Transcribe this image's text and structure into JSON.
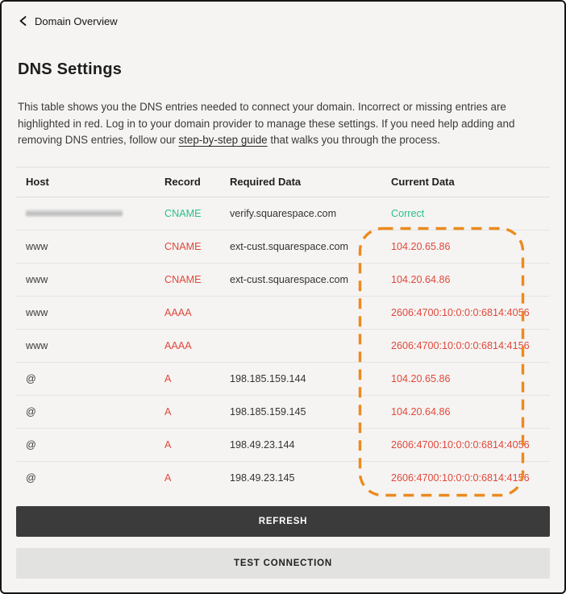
{
  "header": {
    "back_label": "Domain Overview"
  },
  "page": {
    "title": "DNS Settings",
    "description_part1": "This table shows you the DNS entries needed to connect your domain. Incorrect or missing entries are highlighted in red. Log in to your domain provider to manage these settings. If you need help adding and removing DNS entries, follow our ",
    "description_link": "step-by-step guide",
    "description_part2": " that walks you through the process."
  },
  "table": {
    "columns": [
      "Host",
      "Record",
      "Required Data",
      "Current Data"
    ],
    "rows": [
      {
        "host": "",
        "host_redacted": true,
        "record": "CNAME",
        "record_status": "correct",
        "required_data": "verify.squarespace.com",
        "current_data": "Correct",
        "current_status": "correct"
      },
      {
        "host": "www",
        "host_redacted": false,
        "record": "CNAME",
        "record_status": "incorrect",
        "required_data": "ext-cust.squarespace.com",
        "current_data": "104.20.65.86",
        "current_status": "incorrect"
      },
      {
        "host": "www",
        "host_redacted": false,
        "record": "CNAME",
        "record_status": "incorrect",
        "required_data": "ext-cust.squarespace.com",
        "current_data": "104.20.64.86",
        "current_status": "incorrect"
      },
      {
        "host": "www",
        "host_redacted": false,
        "record": "AAAA",
        "record_status": "incorrect",
        "required_data": "",
        "current_data": "2606:4700:10:0:0:0:6814:4056",
        "current_status": "incorrect"
      },
      {
        "host": "www",
        "host_redacted": false,
        "record": "AAAA",
        "record_status": "incorrect",
        "required_data": "",
        "current_data": "2606:4700:10:0:0:0:6814:4156",
        "current_status": "incorrect"
      },
      {
        "host": "@",
        "host_redacted": false,
        "record": "A",
        "record_status": "incorrect",
        "required_data": "198.185.159.144",
        "current_data": "104.20.65.86",
        "current_status": "incorrect"
      },
      {
        "host": "@",
        "host_redacted": false,
        "record": "A",
        "record_status": "incorrect",
        "required_data": "198.185.159.145",
        "current_data": "104.20.64.86",
        "current_status": "incorrect"
      },
      {
        "host": "@",
        "host_redacted": false,
        "record": "A",
        "record_status": "incorrect",
        "required_data": "198.49.23.144",
        "current_data": "2606:4700:10:0:0:0:6814:4056",
        "current_status": "incorrect"
      },
      {
        "host": "@",
        "host_redacted": false,
        "record": "A",
        "record_status": "incorrect",
        "required_data": "198.49.23.145",
        "current_data": "2606:4700:10:0:0:0:6814:4156",
        "current_status": "incorrect"
      }
    ]
  },
  "annotation": {
    "type": "dashed-highlight-box",
    "highlighted_column": "Current Data"
  },
  "buttons": {
    "refresh": "REFRESH",
    "test_connection": "TEST CONNECTION"
  },
  "colors": {
    "correct_green": "#2abf8d",
    "incorrect_red": "#e0483c",
    "highlight_orange": "#ec8a1e",
    "refresh_button_bg": "#3b3b3b",
    "page_background": "#f5f4f2"
  }
}
